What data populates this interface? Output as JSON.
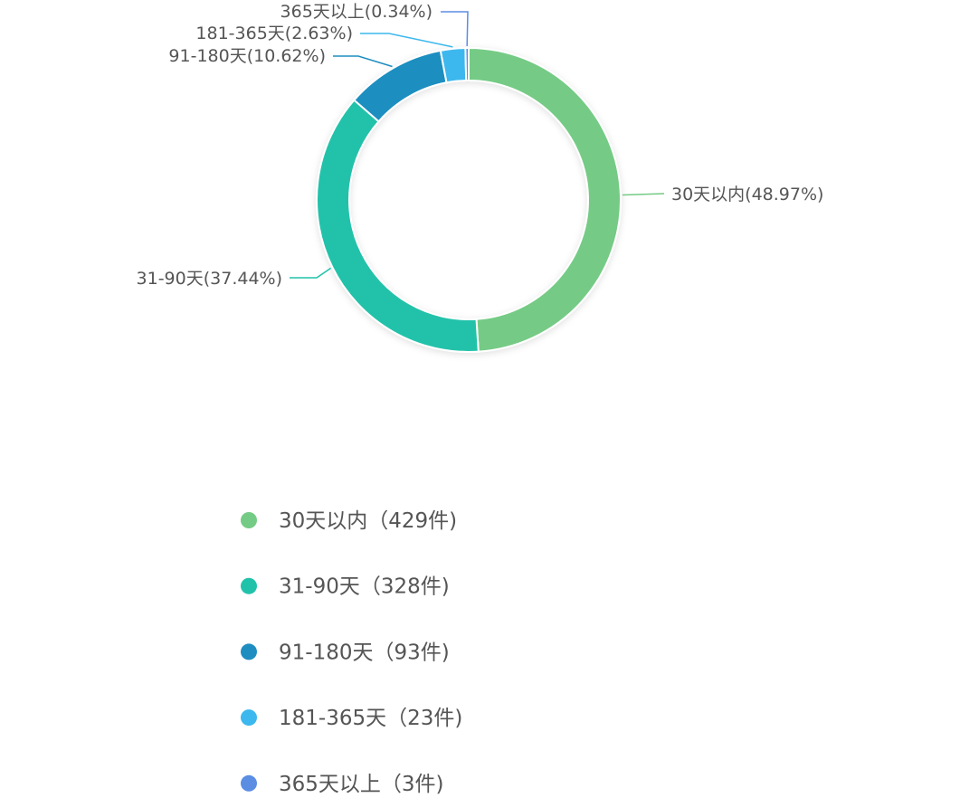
{
  "chart_data": {
    "type": "pie",
    "variant": "donut",
    "series": [
      {
        "name": "30天以内",
        "value": 429,
        "percent_label": "30天以内(48.97%)",
        "legend_label": "30天以内（429件)",
        "color": "#74CB85"
      },
      {
        "name": "31-90天",
        "value": 328,
        "percent_label": "31-90天(37.44%)",
        "legend_label": "31-90天（328件)",
        "color": "#21C2AA"
      },
      {
        "name": "91-180天",
        "value": 93,
        "percent_label": "91-180天(10.62%)",
        "legend_label": "91-180天（93件)",
        "color": "#1E8EC0"
      },
      {
        "name": "181-365天",
        "value": 23,
        "percent_label": "181-365天(2.63%)",
        "legend_label": "181-365天（23件)",
        "color": "#3DB8EE"
      },
      {
        "name": "365天以上",
        "value": 3,
        "percent_label": "365天以上(0.34%)",
        "legend_label": "365天以上（3件)",
        "color": "#5B8DE3"
      }
    ],
    "start_angle_deg": 90,
    "direction": "clockwise",
    "legend_position": "bottom"
  }
}
